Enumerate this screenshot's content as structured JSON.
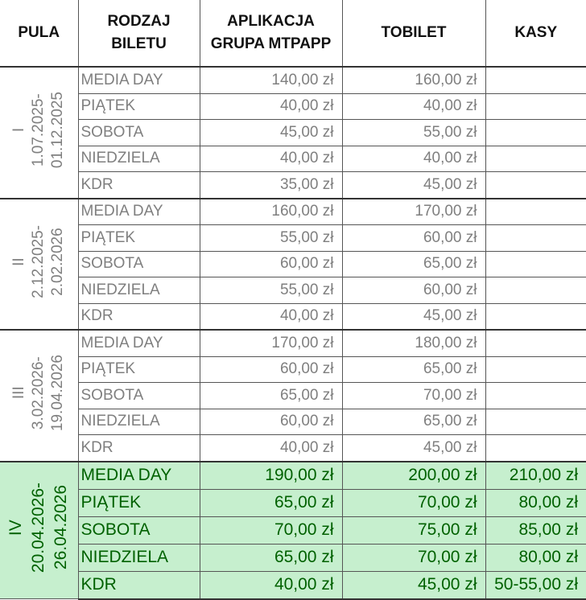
{
  "headers": {
    "pula": "PULA",
    "rodzaj_line1": "RODZAJ",
    "rodzaj_line2": "BILETU",
    "aplikacja_line1": "APLIKACJA",
    "aplikacja_line2": "GRUPA MTPAPP",
    "tobilet": "TOBILET",
    "kasy": "KASY"
  },
  "colors": {
    "highlight_bg": "#c6efce",
    "highlight_text": "#006100",
    "muted_text": "#7f7f7f"
  },
  "groups": [
    {
      "pula": "I",
      "date_from": "1.07.2025-",
      "date_to": "01.12.2025",
      "highlight": false,
      "rows": [
        {
          "type": "MEDIA DAY",
          "aplikacja": "140,00 zł",
          "tobilet": "160,00 zł",
          "kasy": ""
        },
        {
          "type": "PIĄTEK",
          "aplikacja": "40,00 zł",
          "tobilet": "40,00 zł",
          "kasy": ""
        },
        {
          "type": "SOBOTA",
          "aplikacja": "45,00 zł",
          "tobilet": "55,00 zł",
          "kasy": ""
        },
        {
          "type": "NIEDZIELA",
          "aplikacja": "40,00 zł",
          "tobilet": "40,00 zł",
          "kasy": ""
        },
        {
          "type": "KDR",
          "aplikacja": "35,00 zł",
          "tobilet": "45,00 zł",
          "kasy": ""
        }
      ]
    },
    {
      "pula": "II",
      "date_from": "2.12.2025-",
      "date_to": "2.02.2026",
      "highlight": false,
      "rows": [
        {
          "type": "MEDIA DAY",
          "aplikacja": "160,00 zł",
          "tobilet": "170,00 zł",
          "kasy": ""
        },
        {
          "type": "PIĄTEK",
          "aplikacja": "55,00 zł",
          "tobilet": "60,00 zł",
          "kasy": ""
        },
        {
          "type": "SOBOTA",
          "aplikacja": "60,00 zł",
          "tobilet": "65,00 zł",
          "kasy": ""
        },
        {
          "type": "NIEDZIELA",
          "aplikacja": "55,00 zł",
          "tobilet": "60,00 zł",
          "kasy": ""
        },
        {
          "type": "KDR",
          "aplikacja": "40,00 zł",
          "tobilet": "45,00 zł",
          "kasy": ""
        }
      ]
    },
    {
      "pula": "III",
      "date_from": "3.02.2026-",
      "date_to": "19.04.2026",
      "highlight": false,
      "rows": [
        {
          "type": "MEDIA DAY",
          "aplikacja": "170,00 zł",
          "tobilet": "180,00 zł",
          "kasy": ""
        },
        {
          "type": "PIĄTEK",
          "aplikacja": "60,00 zł",
          "tobilet": "65,00 zł",
          "kasy": ""
        },
        {
          "type": "SOBOTA",
          "aplikacja": "65,00 zł",
          "tobilet": "70,00 zł",
          "kasy": ""
        },
        {
          "type": "NIEDZIELA",
          "aplikacja": "60,00 zł",
          "tobilet": "65,00 zł",
          "kasy": ""
        },
        {
          "type": "KDR",
          "aplikacja": "40,00 zł",
          "tobilet": "45,00 zł",
          "kasy": ""
        }
      ]
    },
    {
      "pula": "IV",
      "date_from": "20.04.2026-",
      "date_to": "26.04.2026",
      "highlight": true,
      "rows": [
        {
          "type": "MEDIA DAY",
          "aplikacja": "190,00 zł",
          "tobilet": "200,00 zł",
          "kasy": "210,00 zł"
        },
        {
          "type": "PIĄTEK",
          "aplikacja": "65,00 zł",
          "tobilet": "70,00 zł",
          "kasy": "80,00 zł"
        },
        {
          "type": "SOBOTA",
          "aplikacja": "70,00 zł",
          "tobilet": "75,00 zł",
          "kasy": "85,00 zł"
        },
        {
          "type": "NIEDZIELA",
          "aplikacja": "65,00 zł",
          "tobilet": "70,00 zł",
          "kasy": "80,00 zł"
        },
        {
          "type": "KDR",
          "aplikacja": "40,00 zł",
          "tobilet": "45,00 zł",
          "kasy": "50-55,00 zł"
        }
      ]
    }
  ]
}
